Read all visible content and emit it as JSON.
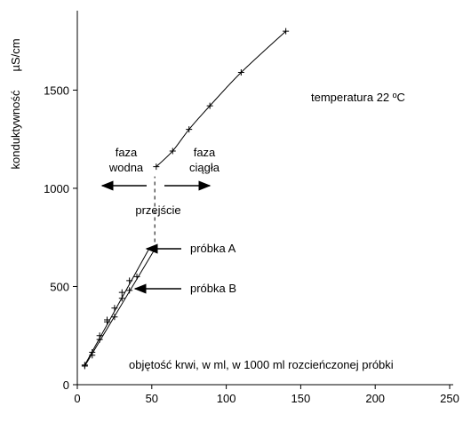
{
  "chart_data": {
    "type": "scatter",
    "xlim": [
      0,
      250
    ],
    "ylim": [
      0,
      1900
    ],
    "x_ticks": [
      0,
      50,
      100,
      150,
      200,
      250
    ],
    "y_ticks": [
      0,
      500,
      1000,
      1500
    ],
    "ylabel": "konduktywność",
    "y_unit": "µS/cm",
    "xlabel": "objętość krwi, w ml,  w 1000 ml rozcieńczonej próbki",
    "temperature_label": "temperatura  22 ºC",
    "annotations": {
      "faza_wodna": [
        "faza",
        "wodna"
      ],
      "faza_ciagla": [
        "faza",
        "ciągła"
      ],
      "przejscie": "przejście",
      "probka_a": "próbka  A",
      "probka_b": "próbka  B"
    },
    "series": [
      {
        "id": "upper",
        "values_x": [
          53,
          64,
          75,
          89,
          110,
          140
        ],
        "values_y": [
          1110,
          1190,
          1300,
          1420,
          1590,
          1800
        ]
      },
      {
        "id": "probka_a",
        "values_x": [
          5,
          10,
          15,
          20,
          25,
          30,
          35,
          48
        ],
        "values_y": [
          100,
          165,
          250,
          330,
          390,
          470,
          530,
          690
        ]
      },
      {
        "id": "probka_b",
        "values_x": [
          5,
          10,
          15,
          20,
          25,
          30,
          35,
          40,
          52
        ],
        "values_y": [
          95,
          150,
          230,
          320,
          345,
          440,
          480,
          550,
          690
        ]
      }
    ],
    "transition_x": 52,
    "transition_range": [
      690,
      1060
    ]
  }
}
